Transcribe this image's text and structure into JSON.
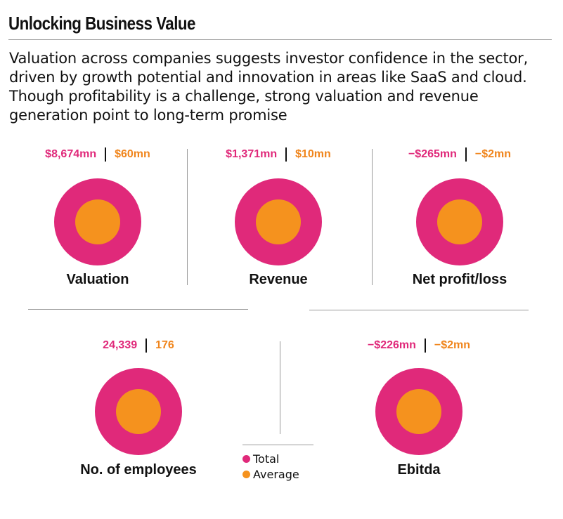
{
  "title": "Unlocking Business Value",
  "subtitle": "Valuation across companies suggests investor confidence in the sector, driven by growth potential and innovation in areas like SaaS and cloud. Though profitability is a challenge, strong valuation and revenue generation point to long-term promise",
  "colors": {
    "total": "#e0297a",
    "average": "#f5921e"
  },
  "legend": {
    "total_label": "Total",
    "average_label": "Average"
  },
  "chart_data": {
    "type": "other",
    "series": [
      {
        "name": "Total"
      },
      {
        "name": "Average"
      }
    ],
    "metrics": [
      {
        "label": "Valuation",
        "total": "$8,674mn",
        "average": "$60mn"
      },
      {
        "label": "Revenue",
        "total": "$1,371mn",
        "average": "$10mn"
      },
      {
        "label": "Net profit/loss",
        "total": "−$265mn",
        "average": "−$2mn"
      },
      {
        "label": "No. of employees",
        "total": "24,339",
        "average": "176"
      },
      {
        "label": "Ebitda",
        "total": "−$226mn",
        "average": "−$2mn"
      }
    ]
  }
}
